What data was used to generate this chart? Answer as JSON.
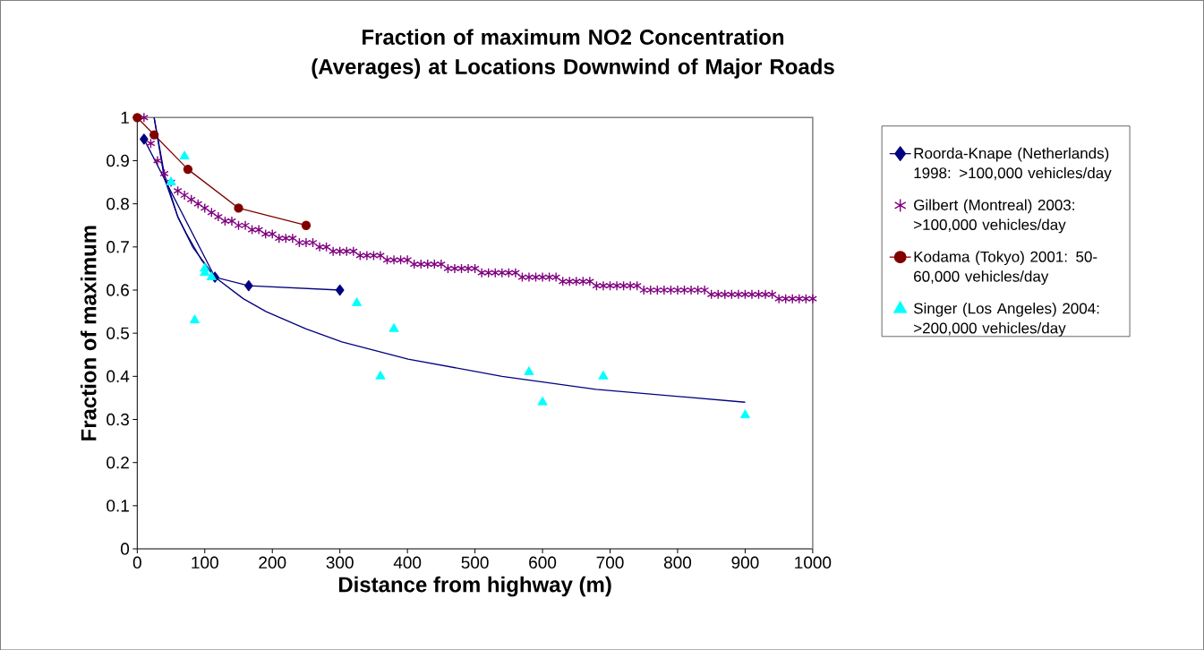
{
  "chart_data": {
    "type": "line",
    "title": "Fraction of maximum  NO2 Concentration (Averages) at Locations Downwind of Major Roads",
    "xlabel": "Distance from highway (m)",
    "ylabel": "Fraction of maximum",
    "xlim": [
      0,
      1000
    ],
    "ylim": [
      0,
      1
    ],
    "xticks": [
      0,
      100,
      200,
      300,
      400,
      500,
      600,
      700,
      800,
      900,
      1000
    ],
    "yticks": [
      0,
      0.1,
      0.2,
      0.3,
      0.4,
      0.5,
      0.6,
      0.7,
      0.8,
      0.9,
      1
    ],
    "legend": "right",
    "grid": false,
    "series": [
      {
        "name": "Roorda-Knape (Netherlands) 1998: >100,000 vehicles/day",
        "marker": "diamond",
        "line_style": "solid",
        "color": "#000080",
        "x": [
          10,
          115,
          165,
          300
        ],
        "values": [
          0.95,
          0.63,
          0.61,
          0.6
        ]
      },
      {
        "name": "Gilbert (Montreal) 2003: >100,000 vehicles/day",
        "type": "scatter",
        "marker": "cross",
        "color": "#800080",
        "x": [
          10,
          20,
          30,
          40,
          50,
          60,
          70,
          80,
          90,
          100,
          110,
          120,
          130,
          140,
          150,
          160,
          170,
          180,
          190,
          200,
          210,
          220,
          230,
          240,
          250,
          260,
          270,
          280,
          290,
          300,
          310,
          320,
          330,
          340,
          350,
          360,
          370,
          380,
          390,
          400,
          410,
          420,
          430,
          440,
          450,
          460,
          470,
          480,
          490,
          500,
          510,
          520,
          530,
          540,
          550,
          560,
          570,
          580,
          590,
          600,
          610,
          620,
          630,
          640,
          650,
          660,
          670,
          680,
          690,
          700,
          710,
          720,
          730,
          740,
          750,
          760,
          770,
          780,
          790,
          800,
          810,
          820,
          830,
          840,
          850,
          860,
          870,
          880,
          890,
          900,
          910,
          920,
          930,
          940,
          950,
          960,
          970,
          980,
          990,
          1000
        ],
        "values": [
          1.0,
          0.94,
          0.9,
          0.87,
          0.85,
          0.83,
          0.82,
          0.81,
          0.8,
          0.79,
          0.78,
          0.77,
          0.76,
          0.76,
          0.75,
          0.75,
          0.74,
          0.74,
          0.73,
          0.73,
          0.72,
          0.72,
          0.72,
          0.71,
          0.71,
          0.71,
          0.7,
          0.7,
          0.69,
          0.69,
          0.69,
          0.69,
          0.68,
          0.68,
          0.68,
          0.68,
          0.67,
          0.67,
          0.67,
          0.67,
          0.66,
          0.66,
          0.66,
          0.66,
          0.66,
          0.65,
          0.65,
          0.65,
          0.65,
          0.65,
          0.64,
          0.64,
          0.64,
          0.64,
          0.64,
          0.64,
          0.63,
          0.63,
          0.63,
          0.63,
          0.63,
          0.63,
          0.62,
          0.62,
          0.62,
          0.62,
          0.62,
          0.61,
          0.61,
          0.61,
          0.61,
          0.61,
          0.61,
          0.61,
          0.6,
          0.6,
          0.6,
          0.6,
          0.6,
          0.6,
          0.6,
          0.6,
          0.6,
          0.6,
          0.59,
          0.59,
          0.59,
          0.59,
          0.59,
          0.59,
          0.59,
          0.59,
          0.59,
          0.59,
          0.58,
          0.58,
          0.58,
          0.58,
          0.58,
          0.58
        ]
      },
      {
        "name": "Kodama (Tokyo) 2001: 50-60,000 vehicles/day",
        "marker": "circle",
        "line_style": "solid",
        "color": "#800000",
        "x": [
          0,
          25,
          75,
          150,
          250
        ],
        "values": [
          1.0,
          0.96,
          0.88,
          0.79,
          0.75
        ]
      },
      {
        "name": "Singer (Los Angeles) 2004: >200,000 vehicles/day",
        "type": "scatter",
        "marker": "triangle",
        "color": "#00ffff",
        "x": [
          50,
          70,
          85,
          100,
          100,
          110,
          325,
          360,
          380,
          580,
          600,
          690,
          900
        ],
        "values": [
          0.85,
          0.91,
          0.53,
          0.65,
          0.64,
          0.63,
          0.57,
          0.4,
          0.51,
          0.41,
          0.34,
          0.4,
          0.31
        ]
      },
      {
        "marker": "none",
        "line_style": "solid",
        "color": "#000080",
        "x": [
          25,
          40,
          60,
          82,
          115,
          157,
          191,
          250,
          303,
          401,
          540,
          679,
          900
        ],
        "values": [
          1.0,
          0.87,
          0.77,
          0.7,
          0.63,
          0.58,
          0.55,
          0.51,
          0.48,
          0.44,
          0.4,
          0.37,
          0.34
        ]
      },
      {
        "marker": "none",
        "line_style": "solid",
        "color": "#000080",
        "x": [
          25,
          40,
          60,
          73,
          95,
          115
        ],
        "values": [
          1.0,
          0.86,
          0.77,
          0.73,
          0.67,
          0.63
        ]
      }
    ]
  }
}
